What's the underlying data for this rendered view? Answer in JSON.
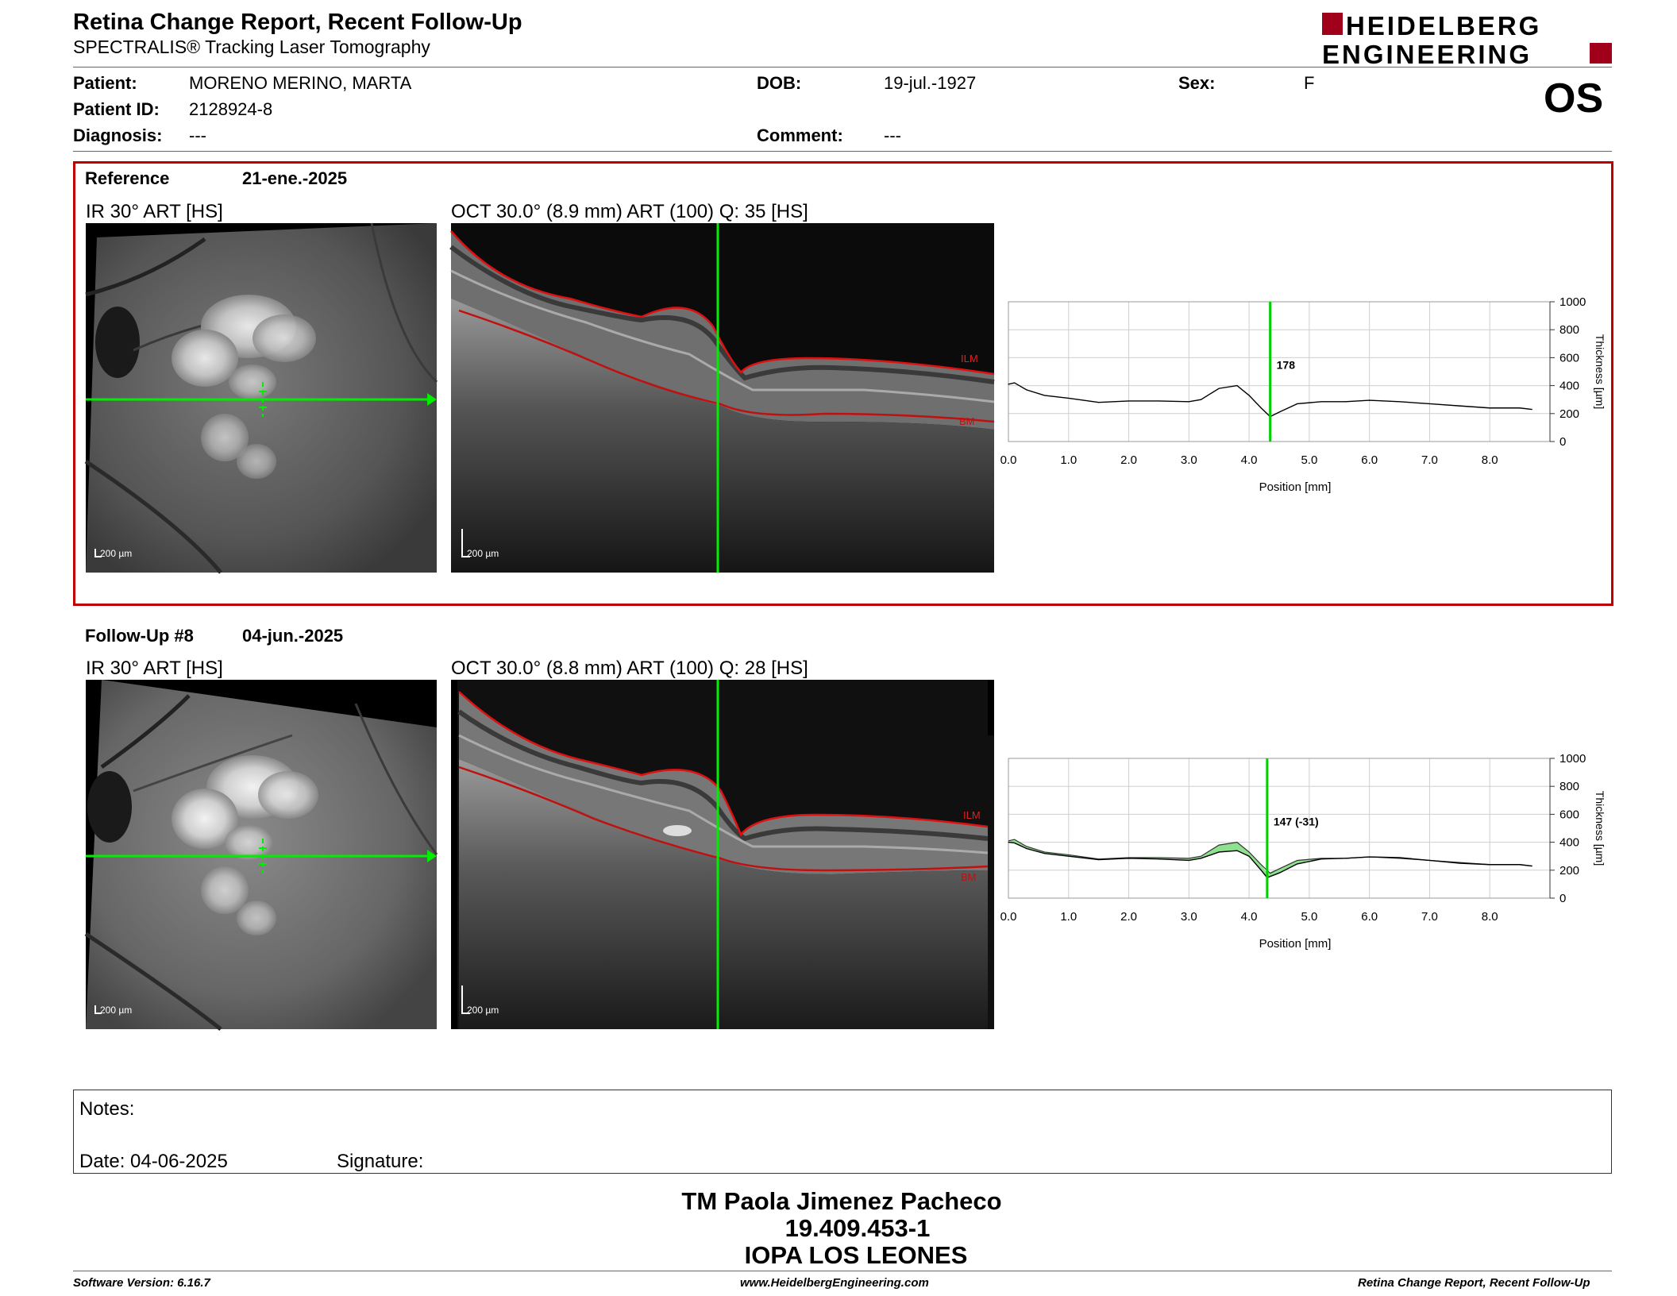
{
  "header": {
    "title": "Retina Change Report, Recent Follow-Up",
    "subtitle": "SPECTRALIS® Tracking Laser Tomography",
    "logo_line1": "HEIDELBERG",
    "logo_line2": "ENGINEERING",
    "eye": "OS"
  },
  "patient": {
    "patient_label": "Patient:",
    "patient_value": "MORENO MERINO, MARTA",
    "id_label": "Patient ID:",
    "id_value": "2128924-8",
    "diagnosis_label": "Diagnosis:",
    "diagnosis_value": "---",
    "dob_label": "DOB:",
    "dob_value": "19-jul.-1927",
    "comment_label": "Comment:",
    "comment_value": "---",
    "sex_label": "Sex:",
    "sex_value": "F"
  },
  "reference": {
    "label": "Reference",
    "date": "21-ene.-2025",
    "ir_label": "IR 30° ART [HS]",
    "oct_label": "OCT 30.0° (8.9 mm) ART (100) Q: 35 [HS]",
    "scale": "200 µm",
    "ilm": "ILM",
    "bm": "BM"
  },
  "followup": {
    "label": "Follow-Up #8",
    "date": "04-jun.-2025",
    "ir_label": "IR 30° ART [HS]",
    "oct_label": "OCT 30.0° (8.8 mm) ART (100) Q: 28 [HS]",
    "scale": "200 µm",
    "ilm": "ILM",
    "bm": "BM"
  },
  "chart_data": [
    {
      "type": "line",
      "xlabel": "Position [mm]",
      "ylabel": "Thickness [µm]",
      "xlim": [
        0,
        9.0
      ],
      "ylim": [
        0,
        1000
      ],
      "x_ticks": [
        "0.0",
        "1.0",
        "2.0",
        "3.0",
        "4.0",
        "5.0",
        "6.0",
        "7.0",
        "8.0"
      ],
      "y_ticks": [
        "0",
        "200",
        "400",
        "600",
        "800",
        "1000"
      ],
      "marker_x": 4.35,
      "marker_label": "178",
      "grid": true,
      "series": [
        {
          "x": [
            0.0,
            0.1,
            0.3,
            0.6,
            1.0,
            1.5,
            2.0,
            2.5,
            3.0,
            3.2,
            3.5,
            3.8,
            4.0,
            4.2,
            4.35,
            4.5,
            4.8,
            5.2,
            5.6,
            6.0,
            6.5,
            7.0,
            7.5,
            8.0,
            8.5,
            8.7
          ],
          "values": [
            410,
            420,
            370,
            330,
            310,
            280,
            290,
            290,
            285,
            300,
            380,
            400,
            330,
            240,
            178,
            210,
            270,
            285,
            285,
            295,
            285,
            270,
            255,
            240,
            240,
            230
          ]
        }
      ]
    },
    {
      "type": "area",
      "xlabel": "Position [mm]",
      "ylabel": "Thickness [µm]",
      "xlim": [
        0,
        9.0
      ],
      "ylim": [
        0,
        1000
      ],
      "x_ticks": [
        "0.0",
        "1.0",
        "2.0",
        "3.0",
        "4.0",
        "5.0",
        "6.0",
        "7.0",
        "8.0"
      ],
      "y_ticks": [
        "0",
        "200",
        "400",
        "600",
        "800",
        "1000"
      ],
      "marker_x": 4.3,
      "marker_label": "147 (-31)",
      "grid": true,
      "series": [
        {
          "x": [
            0.0,
            0.1,
            0.3,
            0.6,
            1.0,
            1.5,
            2.0,
            2.5,
            3.0,
            3.2,
            3.5,
            3.8,
            4.0,
            4.2,
            4.3,
            4.5,
            4.8,
            5.2,
            5.6,
            6.0,
            6.5,
            7.0,
            7.5,
            8.0,
            8.5,
            8.7
          ],
          "values": [
            400,
            395,
            355,
            320,
            300,
            275,
            285,
            280,
            270,
            285,
            330,
            340,
            300,
            200,
            147,
            180,
            245,
            280,
            285,
            295,
            290,
            270,
            250,
            240,
            240,
            230
          ]
        }
      ]
    }
  ],
  "notes": {
    "notes_label": "Notes:",
    "date_label": "Date: 04-06-2025",
    "signature_label": "Signature:"
  },
  "signatory": {
    "name": "TM Paola Jimenez Pacheco",
    "id": "19.409.453-1",
    "clinic": "IOPA LOS LEONES"
  },
  "footer": {
    "software": "Software Version: 6.16.7",
    "website": "www.HeidelbergEngineering.com",
    "report": "Retina Change Report, Recent Follow-Up"
  }
}
